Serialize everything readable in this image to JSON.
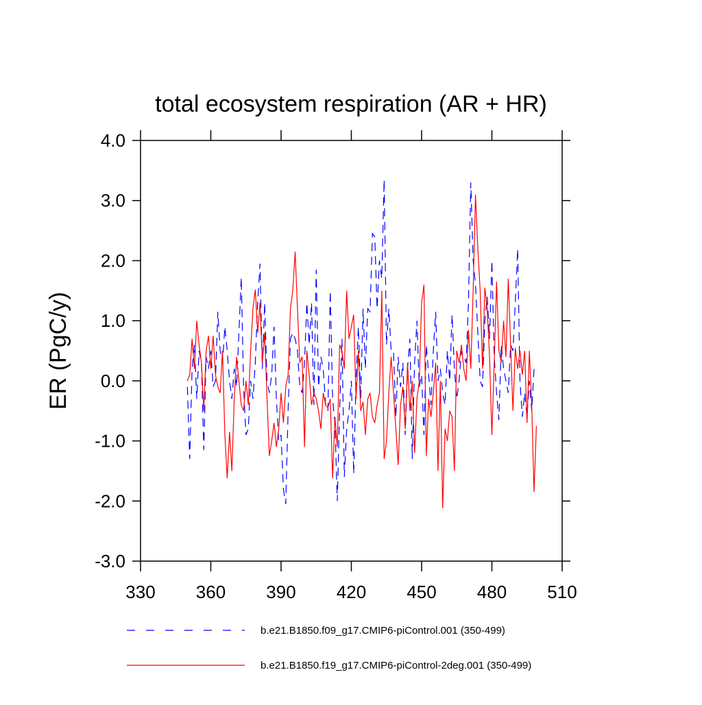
{
  "chart_data": {
    "type": "line",
    "title": "total ecosystem respiration (AR + HR)",
    "y_label": "ER  (PgC/y)",
    "x": [
      350,
      351,
      352,
      353,
      354,
      355,
      356,
      357,
      358,
      359,
      360,
      361,
      362,
      363,
      364,
      365,
      366,
      367,
      368,
      369,
      370,
      371,
      372,
      373,
      374,
      375,
      376,
      377,
      378,
      379,
      380,
      381,
      382,
      383,
      384,
      385,
      386,
      387,
      388,
      389,
      390,
      391,
      392,
      393,
      394,
      395,
      396,
      397,
      398,
      399,
      400,
      401,
      402,
      403,
      404,
      405,
      406,
      407,
      408,
      409,
      410,
      411,
      412,
      413,
      414,
      415,
      416,
      417,
      418,
      419,
      420,
      421,
      422,
      423,
      424,
      425,
      426,
      427,
      428,
      429,
      430,
      431,
      432,
      433,
      434,
      435,
      436,
      437,
      438,
      439,
      440,
      441,
      442,
      443,
      444,
      445,
      446,
      447,
      448,
      449,
      450,
      451,
      452,
      453,
      454,
      455,
      456,
      457,
      458,
      459,
      460,
      461,
      462,
      463,
      464,
      465,
      466,
      467,
      468,
      469,
      470,
      471,
      472,
      473,
      474,
      475,
      476,
      477,
      478,
      479,
      480,
      481,
      482,
      483,
      484,
      485,
      486,
      487,
      488,
      489,
      490,
      491,
      492,
      493,
      494,
      495,
      496,
      497,
      498,
      499
    ],
    "series": [
      {
        "name": "b.e21.B1850.f09_g17.CMIP6-piControl.001 (350-499)",
        "color": "#0000ff",
        "dash": true,
        "values": [
          -0.1,
          -1.3,
          0.2,
          0.6,
          -0.3,
          0.5,
          0.3,
          -1.15,
          0.4,
          0.2,
          0.5,
          -0.1,
          0.0,
          1.15,
          0.5,
          0.3,
          0.9,
          0.5,
          0.0,
          -0.3,
          0.2,
          -0.1,
          0.8,
          1.72,
          -0.1,
          -0.9,
          -0.8,
          0.0,
          -0.3,
          0.3,
          1.3,
          1.95,
          0.2,
          1.3,
          0.0,
          -0.2,
          0.1,
          0.9,
          -0.3,
          -1.0,
          -0.9,
          -1.8,
          -2.05,
          -0.5,
          0.7,
          0.8,
          0.7,
          0.5,
          -0.1,
          -0.2,
          0.3,
          1.3,
          0.6,
          1.3,
          -0.4,
          1.85,
          -0.1,
          0.4,
          0.2,
          -0.4,
          -0.5,
          1.5,
          -0.3,
          -0.7,
          -2.0,
          -0.5,
          0.7,
          -1.6,
          -0.8,
          -0.5,
          0.0,
          -1.55,
          0.0,
          0.9,
          -0.3,
          1.2,
          0.2,
          1.2,
          1.15,
          2.45,
          2.4,
          1.2,
          2.0,
          1.7,
          3.35,
          0.6,
          1.2,
          0.5,
          0.5,
          -0.6,
          0.4,
          -0.1,
          0.3,
          -0.9,
          0.2,
          0.7,
          -1.3,
          0.3,
          1.0,
          -0.1,
          0.1,
          -0.9,
          0.6,
          0.1,
          -0.4,
          0.5,
          1.15,
          0.0,
          0.2,
          -0.2,
          -0.4,
          0.5,
          0.0,
          1.1,
          0.2,
          -0.3,
          0.0,
          0.5,
          0.4,
          0.3,
          1.3,
          3.3,
          2.0,
          1.6,
          0.8,
          0.0,
          -0.1,
          1.0,
          1.4,
          0.7,
          2.0,
          0.4,
          -0.2,
          -0.65,
          0.6,
          0.2,
          0.0,
          -0.2,
          0.6,
          0.5,
          1.3,
          2.2,
          0.0,
          -0.6,
          -0.2,
          -0.6,
          0.0,
          -0.5,
          0.2,
          0.15
        ]
      },
      {
        "name": "b.e21.B1850.f19_g17.CMIP6-piControl-2deg.001 (350-499)",
        "color": "#ff0000",
        "dash": false,
        "values": [
          0.0,
          0.1,
          0.7,
          0.2,
          1.0,
          0.6,
          0.3,
          -0.5,
          0.5,
          0.75,
          0.2,
          0.75,
          0.1,
          -0.1,
          -0.2,
          0.5,
          -0.9,
          -1.62,
          -0.85,
          -1.5,
          -0.3,
          0.4,
          0.0,
          -0.4,
          -0.5,
          0.0,
          -0.4,
          0.5,
          1.2,
          1.52,
          0.8,
          1.3,
          0.3,
          0.8,
          -0.3,
          -1.25,
          -1.0,
          -0.7,
          -1.1,
          -0.8,
          -0.2,
          -0.7,
          -0.1,
          0.1,
          1.2,
          1.5,
          2.15,
          1.2,
          0.3,
          0.4,
          -1.1,
          0.5,
          0.1,
          -0.4,
          -0.2,
          -0.3,
          -0.5,
          -0.8,
          -0.2,
          -0.4,
          -0.45,
          -0.3,
          -1.62,
          -0.6,
          -1.1,
          0.6,
          0.5,
          0.2,
          1.5,
          0.7,
          0.9,
          1.1,
          -0.3,
          0.5,
          -0.5,
          -0.35,
          -0.9,
          -0.3,
          -0.2,
          -0.6,
          -0.7,
          -0.4,
          -0.2,
          1.5,
          -1.3,
          -1.0,
          -0.2,
          0.4,
          -0.2,
          -0.8,
          -1.4,
          -0.4,
          -0.1,
          -0.8,
          0.3,
          -0.5,
          0.0,
          -1.2,
          -0.3,
          0.0,
          1.3,
          1.6,
          -1.25,
          -0.3,
          -0.6,
          -0.2,
          0.3,
          -1.5,
          0.0,
          -2.12,
          -0.8,
          -1.0,
          -0.5,
          -0.6,
          -1.5,
          0.5,
          0.3,
          0.6,
          0.2,
          0.0,
          0.85,
          0.2,
          1.5,
          3.1,
          2.2,
          1.5,
          0.2,
          1.55,
          1.2,
          0.4,
          -0.9,
          0.3,
          1.65,
          0.5,
          0.3,
          1.0,
          0.4,
          1.7,
          0.6,
          -0.5,
          0.55,
          0.2,
          0.5,
          0.1,
          0.5,
          -0.7,
          0.5,
          -0.4,
          -1.85,
          -0.75
        ]
      }
    ],
    "xlim": [
      330,
      510
    ],
    "xticks": [
      330,
      360,
      390,
      420,
      450,
      480,
      510
    ],
    "ylim": [
      -3,
      4
    ],
    "yticks": [
      {
        "value": -3,
        "label": "-3.0"
      },
      {
        "value": -2,
        "label": "-2.0"
      },
      {
        "value": -1,
        "label": "-1.0"
      },
      {
        "value": 0,
        "label": "0.0"
      },
      {
        "value": 1,
        "label": "1.0"
      },
      {
        "value": 2,
        "label": "2.0"
      },
      {
        "value": 3,
        "label": "3.0"
      },
      {
        "value": 4,
        "label": "4.0"
      }
    ],
    "grid": false
  }
}
